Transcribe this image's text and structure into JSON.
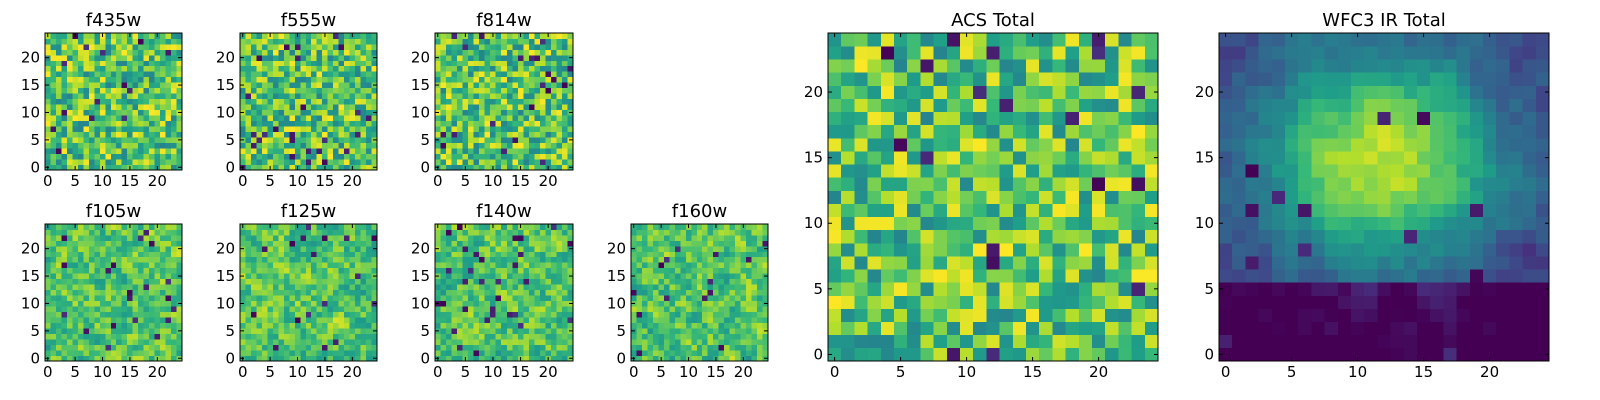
{
  "chart_data": {
    "type": "heatmap",
    "colormap": "viridis",
    "value_range": [
      0,
      1
    ],
    "grid_size": 25,
    "axis_range": [
      -0.5,
      24.5
    ],
    "panels": [
      {
        "title": "f435w",
        "xticks": [
          "0",
          "5",
          "10",
          "15",
          "20"
        ],
        "yticks": [
          "0",
          "5",
          "10",
          "15",
          "20"
        ],
        "seed": 11,
        "texture": "fine",
        "description": "pixel-scale noise heatmap, mostly green-yellow with scattered dark purple pixels"
      },
      {
        "title": "f555w",
        "xticks": [
          "0",
          "5",
          "10",
          "15",
          "20"
        ],
        "yticks": [
          "0",
          "5",
          "10",
          "15",
          "20"
        ],
        "seed": 23,
        "texture": "fine"
      },
      {
        "title": "f814w",
        "xticks": [
          "0",
          "5",
          "10",
          "15",
          "20"
        ],
        "yticks": [
          "0",
          "5",
          "10",
          "15",
          "20"
        ],
        "seed": 37,
        "texture": "fine"
      },
      {
        "title": "f105w",
        "xticks": [
          "0",
          "5",
          "10",
          "15",
          "20"
        ],
        "yticks": [
          "0",
          "5",
          "10",
          "15",
          "20"
        ],
        "seed": 41,
        "texture": "smooth"
      },
      {
        "title": "f125w",
        "xticks": [
          "0",
          "5",
          "10",
          "15",
          "20"
        ],
        "yticks": [
          "0",
          "5",
          "10",
          "15",
          "20"
        ],
        "seed": 53,
        "texture": "smooth"
      },
      {
        "title": "f140w",
        "xticks": [
          "0",
          "5",
          "10",
          "15",
          "20"
        ],
        "yticks": [
          "0",
          "5",
          "10",
          "15",
          "20"
        ],
        "seed": 67,
        "texture": "smooth"
      },
      {
        "title": "f160w",
        "xticks": [
          "0",
          "5",
          "10",
          "15",
          "20"
        ],
        "yticks": [
          "0",
          "5",
          "10",
          "15",
          "20"
        ],
        "seed": 79,
        "texture": "smooth"
      },
      {
        "title": "ACS Total",
        "xticks": [
          "0",
          "5",
          "10",
          "15",
          "20"
        ],
        "yticks": [
          "0",
          "5",
          "10",
          "15",
          "20"
        ],
        "seed": 97,
        "texture": "fine"
      },
      {
        "title": "WFC3 IR Total",
        "xticks": [
          "0",
          "5",
          "10",
          "15",
          "20"
        ],
        "yticks": [
          "0",
          "5",
          "10",
          "15",
          "20"
        ],
        "seed": 131,
        "texture": "blob"
      }
    ]
  }
}
